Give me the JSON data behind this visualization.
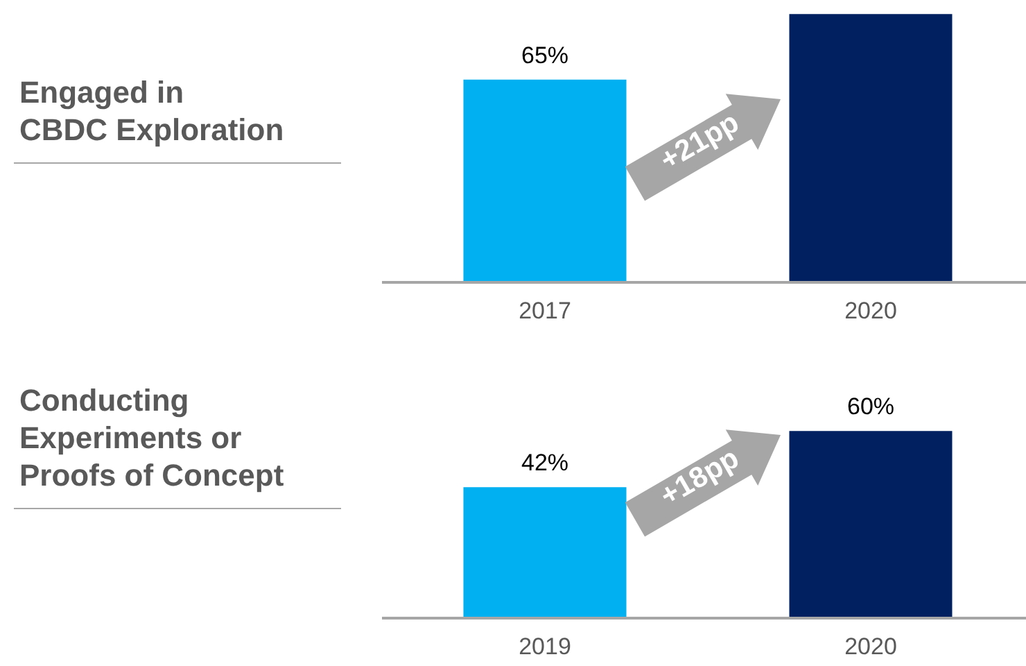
{
  "chart_data": [
    {
      "type": "bar",
      "title": "Engaged in\nCBDC Exploration",
      "categories": [
        "2017",
        "2020"
      ],
      "values": [
        65,
        86
      ],
      "colors": [
        "#00b0f0",
        "#002060"
      ],
      "value_labels": [
        "65%",
        null
      ],
      "annotations": [
        "+21pp"
      ]
    },
    {
      "type": "bar",
      "title": "Conducting\nExperiments or\nProofs of Concept",
      "categories": [
        "2019",
        "2020"
      ],
      "values": [
        42,
        60
      ],
      "colors": [
        "#00b0f0",
        "#002060"
      ],
      "value_labels": [
        "42%",
        "60%"
      ],
      "annotations": [
        "+18pp"
      ]
    }
  ]
}
